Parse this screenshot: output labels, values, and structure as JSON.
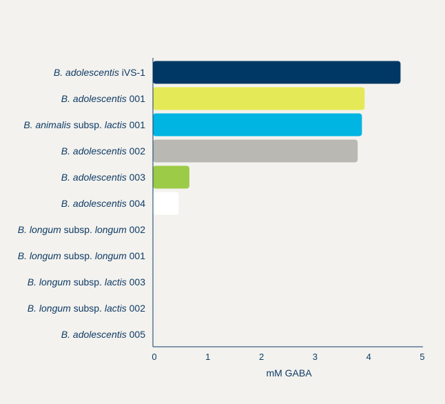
{
  "chart_data": {
    "type": "bar",
    "orientation": "horizontal",
    "title": "",
    "xlabel": "mM GABA",
    "ylabel": "",
    "xlim": [
      0,
      5
    ],
    "xticks": [
      "0",
      "1",
      "2",
      "3",
      "4",
      "5"
    ],
    "grid": false,
    "categories": [
      [
        {
          "t": "B. adolescentis",
          "i": true
        },
        {
          "t": " iVS-1",
          "i": false
        }
      ],
      [
        {
          "t": "B. adolescentis",
          "i": true
        },
        {
          "t": " 001",
          "i": false
        }
      ],
      [
        {
          "t": "B. animalis",
          "i": true
        },
        {
          "t": " subsp. ",
          "i": false
        },
        {
          "t": "lactis",
          "i": true
        },
        {
          "t": " 001",
          "i": false
        }
      ],
      [
        {
          "t": "B. adolescentis",
          "i": true
        },
        {
          "t": " 002",
          "i": false
        }
      ],
      [
        {
          "t": "B. adolescentis",
          "i": true
        },
        {
          "t": " 003",
          "i": false
        }
      ],
      [
        {
          "t": "B. adolescentis",
          "i": true
        },
        {
          "t": " 004",
          "i": false
        }
      ],
      [
        {
          "t": "B. longum",
          "i": true
        },
        {
          "t": " subsp. ",
          "i": false
        },
        {
          "t": "longum",
          "i": true
        },
        {
          "t": " 002",
          "i": false
        }
      ],
      [
        {
          "t": "B. longum",
          "i": true
        },
        {
          "t": " subsp. ",
          "i": false
        },
        {
          "t": "longum",
          "i": true
        },
        {
          "t": " 001",
          "i": false
        }
      ],
      [
        {
          "t": "B. longum",
          "i": true
        },
        {
          "t": " subsp. ",
          "i": false
        },
        {
          "t": "lactis",
          "i": true
        },
        {
          "t": " 003",
          "i": false
        }
      ],
      [
        {
          "t": "B. longum",
          "i": true
        },
        {
          "t": " subsp. ",
          "i": false
        },
        {
          "t": "lactis",
          "i": true
        },
        {
          "t": " 002",
          "i": false
        }
      ],
      [
        {
          "t": "B. adolescentis",
          "i": true
        },
        {
          "t": " 005",
          "i": false
        }
      ]
    ],
    "values": [
      4.62,
      3.95,
      3.9,
      3.82,
      0.68,
      0.48,
      0,
      0,
      0,
      0,
      0
    ],
    "colors": [
      "#003865",
      "#e4e957",
      "#00b5e2",
      "#b9b8b3",
      "#9ccb47",
      "#ffffff",
      "#ffffff",
      "#ffffff",
      "#ffffff",
      "#ffffff",
      "#ffffff"
    ],
    "axis_color": "#0f3b66",
    "text_color": "#0f3b66",
    "background": "#f3f2ee"
  }
}
